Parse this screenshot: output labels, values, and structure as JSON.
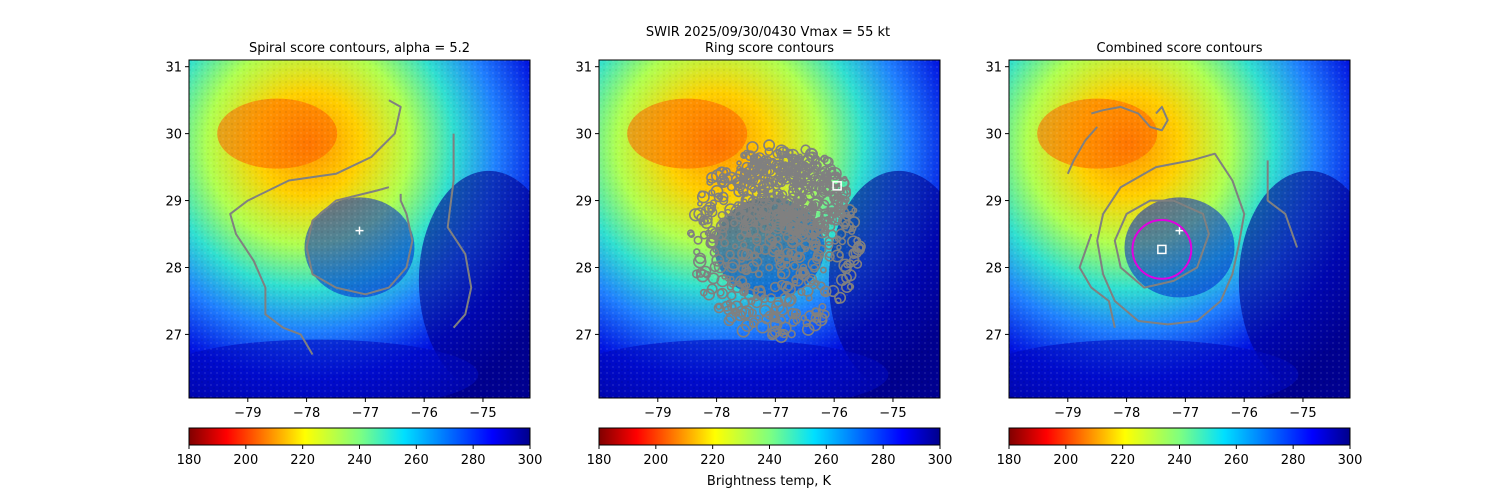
{
  "figure": {
    "suptitle_line": "SWIR  2025/09/30/0430    Vmax = 55 kt",
    "cbar_label": "Brightness temp, K",
    "colormap": "jet_reversed",
    "colormap_note_colors": {
      "low": "#800000",
      "mid": "#00e0ff",
      "high": "#00008b"
    }
  },
  "chart_data": [
    {
      "type": "heatmap",
      "title": "Spiral score contours, alpha =  5.2",
      "xlabel": "",
      "ylabel": "",
      "xlim": [
        -80,
        -74.2
      ],
      "ylim": [
        26.05,
        31.1
      ],
      "xticks": [
        -79,
        -78,
        -77,
        -76,
        -75
      ],
      "xtick_labels": [
        "−79",
        "−78",
        "−77",
        "−76",
        "−75"
      ],
      "yticks": [
        27,
        28,
        29,
        30,
        31
      ],
      "ytick_labels": [
        "27",
        "28",
        "29",
        "30",
        "31"
      ],
      "colorbar": {
        "range": [
          180,
          300
        ],
        "ticks": [
          "180",
          "200",
          "220",
          "240",
          "260",
          "280",
          "300"
        ],
        "label": ""
      },
      "markers": [
        {
          "kind": "plus",
          "lon": -77.1,
          "lat": 28.55,
          "color": "#ffffff"
        }
      ],
      "contours": [
        {
          "color": "#808080",
          "points": [
            [
              -76.6,
              29.2
            ],
            [
              -76.8,
              29.15
            ],
            [
              -77.5,
              29.0
            ],
            [
              -77.9,
              28.7
            ],
            [
              -78.0,
              28.3
            ],
            [
              -77.9,
              27.9
            ],
            [
              -77.5,
              27.7
            ],
            [
              -77.0,
              27.6
            ],
            [
              -76.6,
              27.7
            ],
            [
              -76.3,
              28.0
            ],
            [
              -76.2,
              28.4
            ],
            [
              -76.3,
              28.8
            ],
            [
              -76.4,
              29.0
            ],
            [
              -76.4,
              29.1
            ]
          ]
        },
        {
          "color": "#808080",
          "points": [
            [
              -76.6,
              30.5
            ],
            [
              -76.4,
              30.4
            ],
            [
              -76.5,
              30.0
            ],
            [
              -76.9,
              29.65
            ],
            [
              -77.5,
              29.4
            ],
            [
              -78.3,
              29.3
            ],
            [
              -79.0,
              29.0
            ],
            [
              -79.3,
              28.8
            ],
            [
              -79.2,
              28.5
            ],
            [
              -78.9,
              28.1
            ],
            [
              -78.7,
              27.7
            ],
            [
              -78.7,
              27.3
            ],
            [
              -78.4,
              27.1
            ],
            [
              -78.1,
              27.0
            ],
            [
              -77.9,
              26.7
            ]
          ]
        },
        {
          "color": "#808080",
          "points": [
            [
              -75.5,
              30.0
            ],
            [
              -75.5,
              29.3
            ],
            [
              -75.6,
              28.6
            ],
            [
              -75.3,
              28.2
            ],
            [
              -75.2,
              27.7
            ],
            [
              -75.3,
              27.3
            ],
            [
              -75.5,
              27.1
            ]
          ]
        }
      ]
    },
    {
      "type": "heatmap",
      "title": "Ring score contours",
      "xlabel": "",
      "ylabel": "",
      "xlim": [
        -80,
        -74.2
      ],
      "ylim": [
        26.05,
        31.1
      ],
      "xticks": [
        -79,
        -78,
        -77,
        -76,
        -75
      ],
      "xtick_labels": [
        "−79",
        "−78",
        "−77",
        "−76",
        "−75"
      ],
      "yticks": [
        27,
        28,
        29,
        30,
        31
      ],
      "ytick_labels": [
        "27",
        "28",
        "29",
        "30",
        "31"
      ],
      "colorbar": {
        "range": [
          180,
          300
        ],
        "ticks": [
          "180",
          "200",
          "220",
          "240",
          "260",
          "280",
          "300"
        ],
        "label": "Brightness temp, K"
      },
      "markers": [
        {
          "kind": "square",
          "lon": -75.95,
          "lat": 29.22,
          "color": "#ffffff"
        }
      ],
      "contour_cloud": {
        "color": "#808080",
        "center_lon": -77.0,
        "center_lat": 28.4,
        "radius_deg": 1.45,
        "secondary": {
          "lon": -76.7,
          "lat": 29.1,
          "radius_deg": 0.95
        }
      },
      "contours": []
    },
    {
      "type": "heatmap",
      "title": "Combined score contours",
      "xlabel": "",
      "ylabel": "",
      "xlim": [
        -80,
        -74.2
      ],
      "ylim": [
        26.05,
        31.1
      ],
      "xticks": [
        -79,
        -78,
        -77,
        -76,
        -75
      ],
      "xtick_labels": [
        "−79",
        "−78",
        "−77",
        "−76",
        "−75"
      ],
      "yticks": [
        27,
        28,
        29,
        30,
        31
      ],
      "ytick_labels": [
        "27",
        "28",
        "29",
        "30",
        "31"
      ],
      "colorbar": {
        "range": [
          180,
          300
        ],
        "ticks": [
          "180",
          "200",
          "220",
          "240",
          "260",
          "280",
          "300"
        ],
        "label": ""
      },
      "markers": [
        {
          "kind": "plus",
          "lon": -77.1,
          "lat": 28.55,
          "color": "#ffffff"
        },
        {
          "kind": "square",
          "lon": -77.4,
          "lat": 28.27,
          "color": "#ffffff"
        },
        {
          "kind": "circle",
          "lon": -77.4,
          "lat": 28.27,
          "radius_deg": 0.5,
          "color": "#e000e0"
        }
      ],
      "contours": [
        {
          "color": "#808080",
          "points": [
            [
              -78.6,
              30.3
            ],
            [
              -78.4,
              30.35
            ],
            [
              -78.1,
              30.4
            ],
            [
              -77.8,
              30.3
            ],
            [
              -77.6,
              30.1
            ],
            [
              -77.4,
              30.05
            ],
            [
              -77.3,
              30.2
            ],
            [
              -77.4,
              30.4
            ],
            [
              -77.5,
              30.3
            ]
          ]
        },
        {
          "color": "#808080",
          "points": [
            [
              -79.0,
              29.4
            ],
            [
              -78.9,
              29.6
            ],
            [
              -78.7,
              29.9
            ],
            [
              -78.5,
              30.1
            ]
          ]
        },
        {
          "color": "#808080",
          "points": [
            [
              -77.2,
              29.0
            ],
            [
              -76.7,
              28.8
            ],
            [
              -76.6,
              28.5
            ],
            [
              -76.8,
              28.0
            ],
            [
              -77.2,
              27.8
            ],
            [
              -77.7,
              27.7
            ],
            [
              -78.1,
              28.0
            ],
            [
              -78.2,
              28.4
            ],
            [
              -78.0,
              28.8
            ],
            [
              -77.6,
              29.0
            ],
            [
              -77.2,
              29.0
            ]
          ]
        },
        {
          "color": "#808080",
          "points": [
            [
              -76.9,
              29.6
            ],
            [
              -77.5,
              29.5
            ],
            [
              -78.1,
              29.2
            ],
            [
              -78.4,
              28.8
            ],
            [
              -78.5,
              28.4
            ],
            [
              -78.4,
              27.9
            ],
            [
              -78.2,
              27.5
            ],
            [
              -77.8,
              27.2
            ],
            [
              -77.3,
              27.15
            ],
            [
              -76.8,
              27.2
            ],
            [
              -76.4,
              27.5
            ],
            [
              -76.2,
              27.9
            ],
            [
              -76.1,
              28.3
            ],
            [
              -76.0,
              28.8
            ],
            [
              -76.2,
              29.3
            ],
            [
              -76.5,
              29.7
            ],
            [
              -76.9,
              29.6
            ]
          ]
        },
        {
          "color": "#808080",
          "points": [
            [
              -75.6,
              29.6
            ],
            [
              -75.6,
              29.0
            ],
            [
              -75.3,
              28.8
            ],
            [
              -75.1,
              28.3
            ]
          ]
        },
        {
          "color": "#808080",
          "points": [
            [
              -78.6,
              28.5
            ],
            [
              -78.8,
              28.0
            ],
            [
              -78.6,
              27.7
            ],
            [
              -78.3,
              27.5
            ],
            [
              -78.2,
              27.1
            ]
          ]
        }
      ]
    }
  ]
}
